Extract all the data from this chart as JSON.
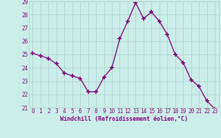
{
  "x": [
    0,
    1,
    2,
    3,
    4,
    5,
    6,
    7,
    8,
    9,
    10,
    11,
    12,
    13,
    14,
    15,
    16,
    17,
    18,
    19,
    20,
    21,
    22,
    23
  ],
  "y": [
    25.1,
    24.9,
    24.7,
    24.3,
    23.6,
    23.4,
    23.2,
    22.2,
    22.2,
    23.3,
    24.0,
    26.2,
    27.5,
    28.9,
    27.7,
    28.2,
    27.5,
    26.5,
    25.0,
    24.4,
    23.1,
    22.6,
    21.5,
    20.9
  ],
  "line_color": "#800080",
  "marker": "+",
  "markersize": 4,
  "linewidth": 1.0,
  "background_color": "#cceee8",
  "grid_color": "#aacccc",
  "xlabel": "Windchill (Refroidissement éolien,°C)",
  "xlabel_color": "#800080",
  "tick_color": "#800080",
  "ylim": [
    21,
    29
  ],
  "xlim": [
    -0.5,
    23.5
  ],
  "yticks": [
    21,
    22,
    23,
    24,
    25,
    26,
    27,
    28,
    29
  ],
  "xticks": [
    0,
    1,
    2,
    3,
    4,
    5,
    6,
    7,
    8,
    9,
    10,
    11,
    12,
    13,
    14,
    15,
    16,
    17,
    18,
    19,
    20,
    21,
    22,
    23
  ],
  "tick_fontsize": 5.5,
  "xlabel_fontsize": 6.0
}
